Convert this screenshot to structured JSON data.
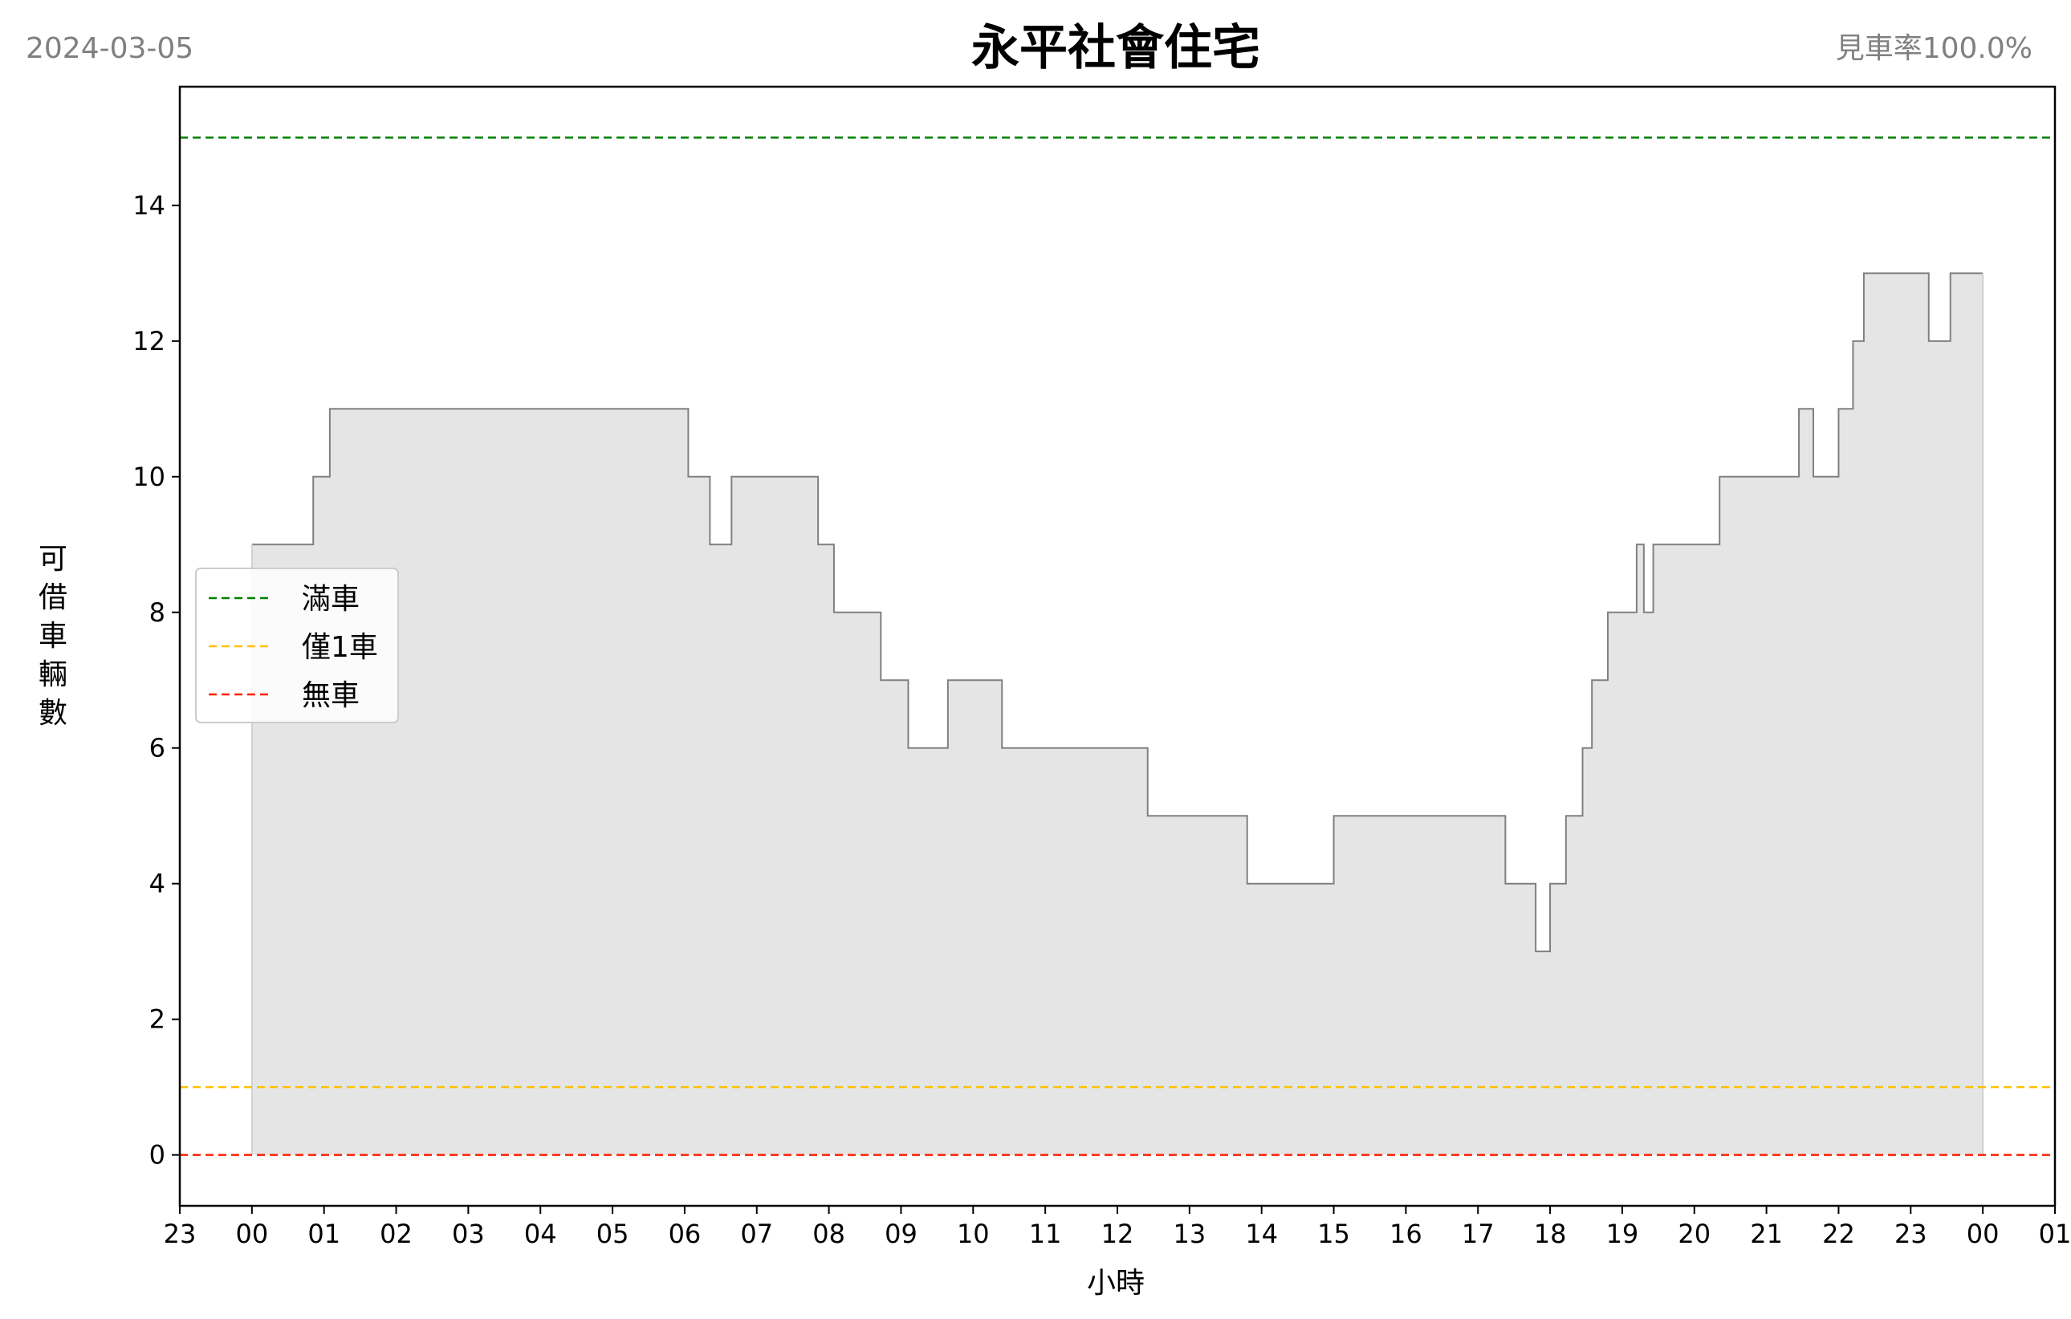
{
  "header": {
    "date": "2024-03-05",
    "title": "永平社會住宅",
    "rate": "見車率100.0%"
  },
  "chart_data": {
    "type": "area",
    "title": "永平社會住宅",
    "xlabel": "小時",
    "ylabel": "可借車輛數",
    "xlim": [
      -1.0,
      25.0
    ],
    "ylim": [
      -0.75,
      15.75
    ],
    "yticks": [
      0,
      2,
      4,
      6,
      8,
      10,
      12,
      14
    ],
    "xticks": [
      -1,
      0,
      1,
      2,
      3,
      4,
      5,
      6,
      7,
      8,
      9,
      10,
      11,
      12,
      13,
      14,
      15,
      16,
      17,
      18,
      19,
      20,
      21,
      22,
      23,
      24,
      25
    ],
    "xtick_labels": [
      "23",
      "00",
      "01",
      "02",
      "03",
      "04",
      "05",
      "06",
      "07",
      "08",
      "09",
      "10",
      "11",
      "12",
      "13",
      "14",
      "15",
      "16",
      "17",
      "18",
      "19",
      "20",
      "21",
      "22",
      "23",
      "00",
      "01"
    ],
    "series": [
      {
        "style": "step",
        "color": "#808080",
        "fill": "#e5e5e5",
        "x": [
          0.0,
          0.85,
          1.08,
          6.05,
          6.35,
          6.65,
          7.85,
          8.07,
          8.72,
          9.1,
          9.65,
          10.4,
          12.42,
          13.8,
          15.0,
          17.38,
          17.8,
          18.0,
          18.22,
          18.45,
          18.58,
          18.8,
          19.2,
          19.3,
          19.43,
          20.35,
          21.45,
          21.65,
          22.0,
          22.2,
          22.35,
          23.25,
          23.55,
          24.0
        ],
        "y": [
          9,
          10,
          11,
          10,
          9,
          10,
          9,
          8,
          7,
          6,
          7,
          6,
          5,
          4,
          5,
          4,
          3,
          4,
          5,
          6,
          7,
          8,
          9,
          8,
          9,
          10,
          11,
          10,
          11,
          12,
          13,
          12,
          13,
          13
        ]
      }
    ],
    "reference_lines": [
      {
        "name": "滿車",
        "y": 15,
        "color": "#008000"
      },
      {
        "name": "僅1車",
        "y": 1,
        "color": "#ffc000"
      },
      {
        "name": "無車",
        "y": 0,
        "color": "#ff2000"
      }
    ],
    "legend": {
      "position": "center-left",
      "entries": [
        "滿車",
        "僅1車",
        "無車"
      ]
    },
    "grid": false
  }
}
